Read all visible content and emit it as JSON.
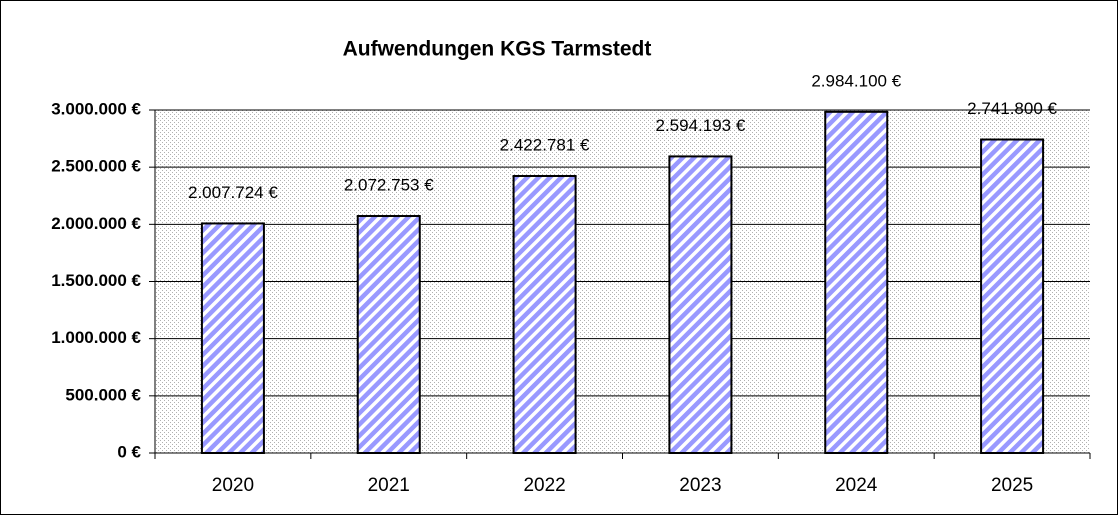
{
  "chart_data": {
    "type": "bar",
    "title": "Aufwendungen KGS Tarmstedt",
    "categories": [
      "2020",
      "2021",
      "2022",
      "2023",
      "2024",
      "2025"
    ],
    "values": [
      2007724,
      2072753,
      2422781,
      2594193,
      2984100,
      2741800
    ],
    "value_labels": [
      "2.007.724 €",
      "2.072.753 €",
      "2.422.781 €",
      "2.594.193 €",
      "2.984.100 €",
      "2.741.800 €"
    ],
    "color": "#9999ff",
    "ylim": [
      0,
      3000000
    ],
    "yticks": [
      {
        "value": 0,
        "label": "0 €"
      },
      {
        "value": 500000,
        "label": "500.000 €"
      },
      {
        "value": 1000000,
        "label": "1.000.000 €"
      },
      {
        "value": 1500000,
        "label": "1.500.000 €"
      },
      {
        "value": 2000000,
        "label": "2.000.000 €"
      },
      {
        "value": 2500000,
        "label": "2.500.000 €"
      },
      {
        "value": 3000000,
        "label": "3.000.000 €"
      }
    ],
    "grid": true
  }
}
